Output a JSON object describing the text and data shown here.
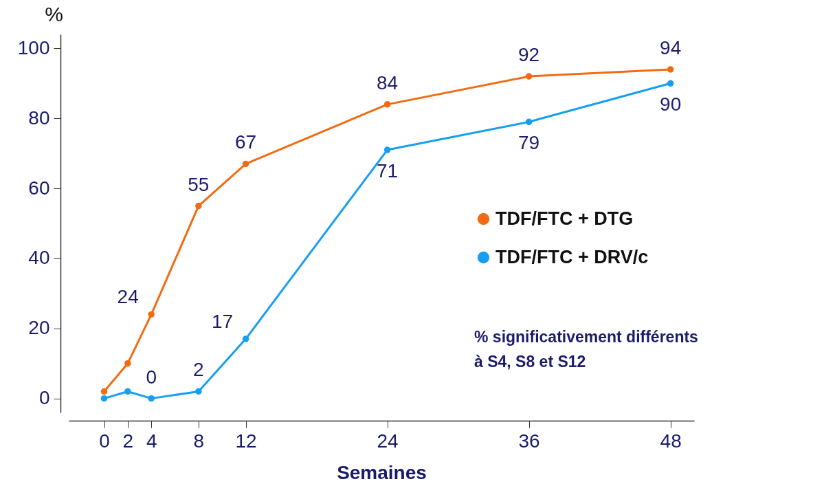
{
  "chart_data": {
    "type": "line",
    "xlabel": "Semaines",
    "ylabel": "%",
    "x": [
      0,
      2,
      4,
      8,
      12,
      24,
      36,
      48
    ],
    "series": [
      {
        "name": "TDF/FTC + DTG",
        "color": "#f26b12",
        "values": [
          2,
          10,
          24,
          55,
          67,
          84,
          92,
          94
        ],
        "value_labels": [
          null,
          null,
          "24",
          "55",
          "67",
          "84",
          "92",
          "94"
        ]
      },
      {
        "name": "TDF/FTC + DRV/c",
        "color": "#169ff0",
        "values": [
          0,
          2,
          0,
          2,
          17,
          71,
          79,
          90
        ],
        "value_labels": [
          null,
          null,
          "0",
          "2",
          "17",
          "71",
          "79",
          "90"
        ]
      }
    ],
    "xlim": [
      -3,
      50
    ],
    "ylim": [
      -4,
      104
    ],
    "xticks": [
      0,
      2,
      4,
      8,
      12,
      24,
      36,
      48
    ],
    "yticks": [
      0,
      20,
      40,
      60,
      80,
      100
    ],
    "grid": false,
    "legend": "right",
    "marker": "circle",
    "line_style": "solid",
    "annotations": [
      "% significativement différents\nà S4, S8 et S12"
    ]
  }
}
